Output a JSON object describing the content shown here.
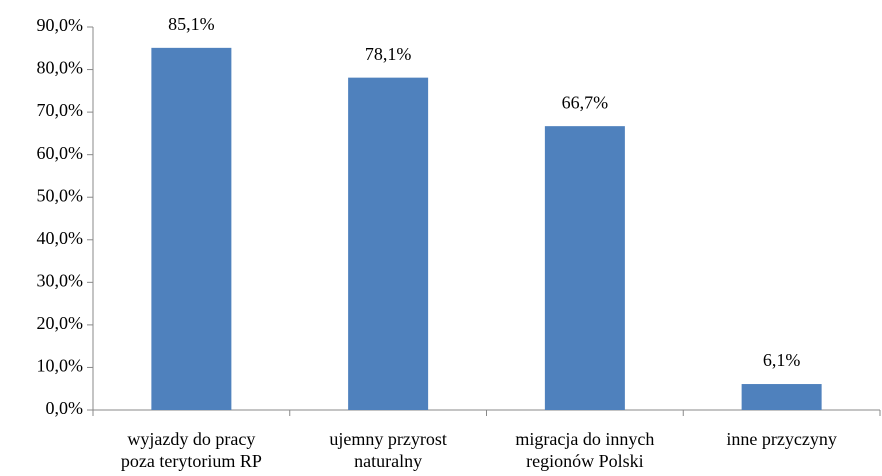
{
  "chart_data": {
    "type": "bar",
    "categories": [
      "wyjazdy do pracy poza terytorium RP",
      "ujemny przyrost naturalny",
      "migracja do innych regionów Polski",
      "inne przyczyny"
    ],
    "values": [
      85.1,
      78.1,
      66.7,
      6.1
    ],
    "value_labels": [
      "85,1%",
      "78,1%",
      "66,7%",
      "6,1%"
    ],
    "color": "#4f81bd",
    "ylim": [
      0,
      90
    ],
    "yticks": [
      {
        "value": 0,
        "label": "0,0%"
      },
      {
        "value": 10,
        "label": "10,0%"
      },
      {
        "value": 20,
        "label": "20,0%"
      },
      {
        "value": 30,
        "label": "30,0%"
      },
      {
        "value": 40,
        "label": "40,0%"
      },
      {
        "value": 50,
        "label": "50,0%"
      },
      {
        "value": 60,
        "label": "60,0%"
      },
      {
        "value": 70,
        "label": "70,0%"
      },
      {
        "value": 80,
        "label": "80,0%"
      },
      {
        "value": 90,
        "label": "90,0%"
      }
    ],
    "grid": false
  }
}
